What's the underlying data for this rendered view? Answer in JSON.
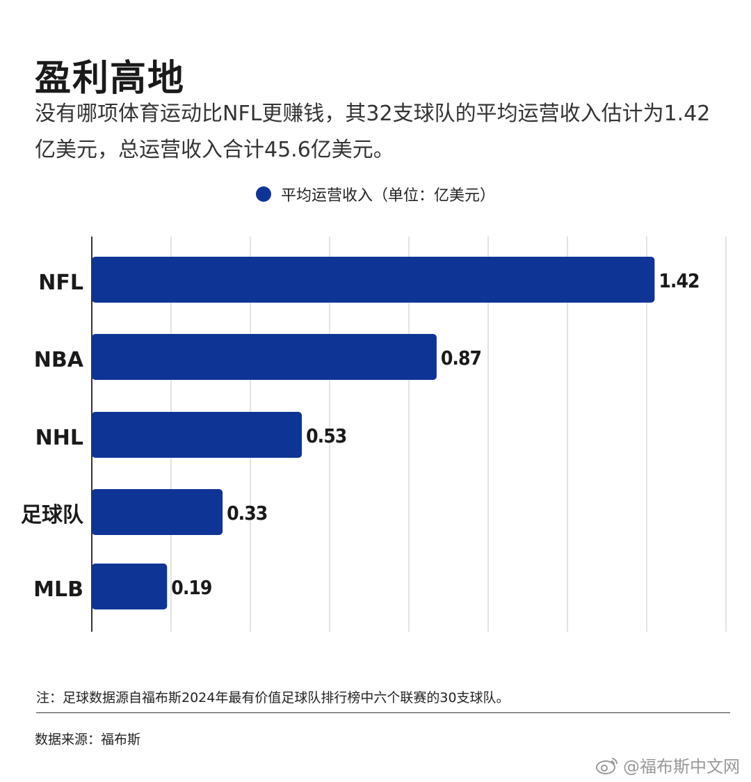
{
  "title": "盈利高地",
  "subtitle": "没有哪项体育运动比NFL更赚钱，其32支球队的平均运营收入估计为1.42亿美元，总运营收入合计45.6亿美元。",
  "legend_label": "平均运营收入（单位：亿美元）",
  "note": "注：足球数据源自福布斯2024年最有价值足球队排行榜中六个联赛的30支球队。",
  "source": "数据来源：福布斯",
  "watermark": "@福布斯中文网",
  "icons": {
    "watermark_icon": "weibo-icon",
    "legend_marker": "legend-dot"
  },
  "colors": {
    "bar": "#0e3596",
    "grid": "#d0d0d0",
    "axis": "#333333"
  },
  "chart_data": {
    "type": "bar",
    "orientation": "horizontal",
    "categories": [
      "NFL",
      "NBA",
      "NHL",
      "足球队",
      "MLB"
    ],
    "values": [
      1.42,
      0.87,
      0.53,
      0.33,
      0.19
    ],
    "xlim": [
      0,
      1.6
    ],
    "grid": true,
    "legend_position": "top-center",
    "data_labels": [
      "1.42",
      "0.87",
      "0.53",
      "0.33",
      "0.19"
    ]
  }
}
